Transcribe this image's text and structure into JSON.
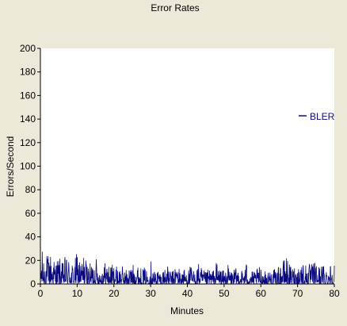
{
  "chart_data": {
    "type": "line",
    "title": "Error Rates",
    "xlabel": "Minutes",
    "ylabel": "Errors/Second",
    "xlim": [
      0,
      80
    ],
    "ylim": [
      0,
      200
    ],
    "xticks": [
      "0",
      "10",
      "20",
      "30",
      "40",
      "50",
      "60",
      "70",
      "80"
    ],
    "yticks": [
      "0",
      "20",
      "40",
      "60",
      "80",
      "100",
      "120",
      "140",
      "160",
      "180",
      "200"
    ],
    "grid": false,
    "legend_position": "right",
    "colors": {
      "series": "#0a0a80",
      "background": "#ece9d8",
      "plot": "#ffffff"
    },
    "series": [
      {
        "name": "BLER",
        "style": "noisy-spikes",
        "x": [
          0,
          1,
          2,
          3,
          4,
          5,
          6,
          7,
          8,
          9,
          10,
          11,
          12,
          13,
          14,
          15,
          16,
          17,
          18,
          19,
          20,
          21,
          22,
          23,
          24,
          25,
          26,
          27,
          28,
          29,
          30,
          31,
          32,
          33,
          34,
          35,
          36,
          37,
          38,
          39,
          40,
          41,
          42,
          43,
          44,
          45,
          46,
          47,
          48,
          49,
          50,
          51,
          52,
          53,
          54,
          55,
          56,
          57,
          58,
          59,
          60,
          61,
          62,
          63,
          64,
          65,
          66,
          67,
          68,
          69,
          70,
          71,
          72,
          73,
          74,
          75,
          76,
          77,
          78,
          79,
          80
        ],
        "values": [
          30,
          27,
          25,
          28,
          20,
          24,
          18,
          26,
          22,
          17,
          28,
          20,
          27,
          16,
          19,
          25,
          12,
          18,
          20,
          16,
          18,
          14,
          17,
          12,
          15,
          16,
          20,
          13,
          15,
          12,
          22,
          12,
          14,
          10,
          18,
          13,
          11,
          20,
          12,
          14,
          12,
          16,
          11,
          18,
          13,
          10,
          14,
          12,
          20,
          14,
          11,
          17,
          12,
          13,
          15,
          12,
          19,
          14,
          10,
          13,
          16,
          11,
          12,
          14,
          12,
          15,
          20,
          24,
          15,
          16,
          14,
          22,
          18,
          17,
          18,
          20,
          15,
          18,
          16,
          19,
          20
        ]
      }
    ]
  }
}
